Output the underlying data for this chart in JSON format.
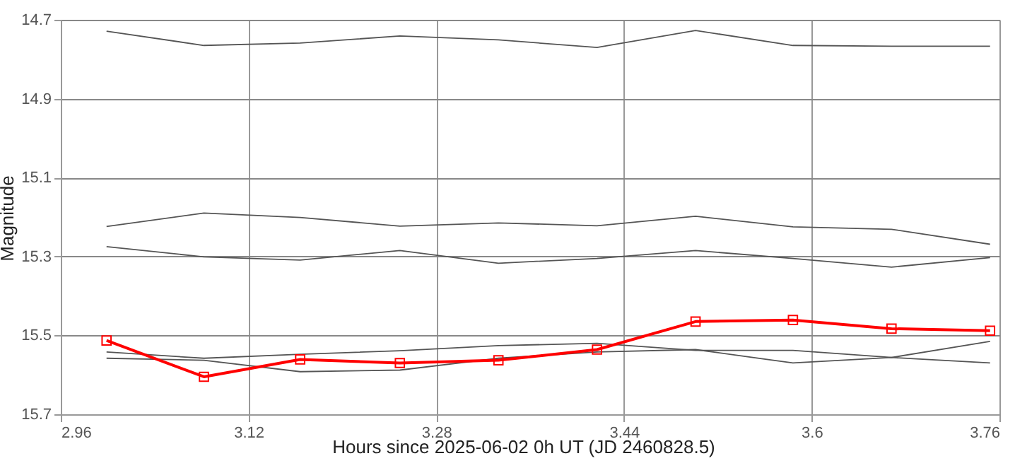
{
  "chart_data": {
    "type": "line",
    "xlabel": "Hours since 2025-06-02 0h UT (JD 2460828.5)",
    "ylabel": "Magnitude",
    "x": [
      2.999,
      3.082,
      3.164,
      3.249,
      3.333,
      3.417,
      3.501,
      3.584,
      3.668,
      3.752
    ],
    "series": [
      {
        "color": "#555555",
        "marker": "none",
        "values": [
          14.729,
          14.765,
          14.759,
          14.741,
          14.751,
          14.77,
          14.727,
          14.765,
          14.767,
          14.767
        ]
      },
      {
        "color": "#555555",
        "marker": "none",
        "values": [
          15.224,
          15.19,
          15.201,
          15.223,
          15.215,
          15.222,
          15.198,
          15.225,
          15.231,
          15.269
        ]
      },
      {
        "color": "#555555",
        "marker": "none",
        "values": [
          15.275,
          15.301,
          15.309,
          15.285,
          15.317,
          15.305,
          15.285,
          15.305,
          15.327,
          15.303
        ]
      },
      {
        "color": "#555555",
        "marker": "none",
        "values": [
          15.542,
          15.558,
          15.548,
          15.539,
          15.526,
          15.52,
          15.538,
          15.538,
          15.556,
          15.515
        ]
      },
      {
        "color": "#555555",
        "marker": "none",
        "values": [
          15.558,
          15.563,
          15.592,
          15.588,
          15.558,
          15.542,
          15.536,
          15.57,
          15.556,
          15.57
        ]
      },
      {
        "color": "#ff0000",
        "marker": "square",
        "values": [
          15.513,
          15.605,
          15.561,
          15.57,
          15.563,
          15.536,
          15.465,
          15.461,
          15.483,
          15.488
        ]
      }
    ],
    "xlim": [
      2.96,
      3.76
    ],
    "xticks": [
      2.96,
      3.12,
      3.28,
      3.44,
      3.6,
      3.76
    ],
    "ylim": [
      15.7,
      14.7
    ],
    "yticks": [
      14.7,
      14.9,
      15.1,
      15.3,
      15.5,
      15.7
    ],
    "grid": true,
    "line_style": "solid"
  }
}
